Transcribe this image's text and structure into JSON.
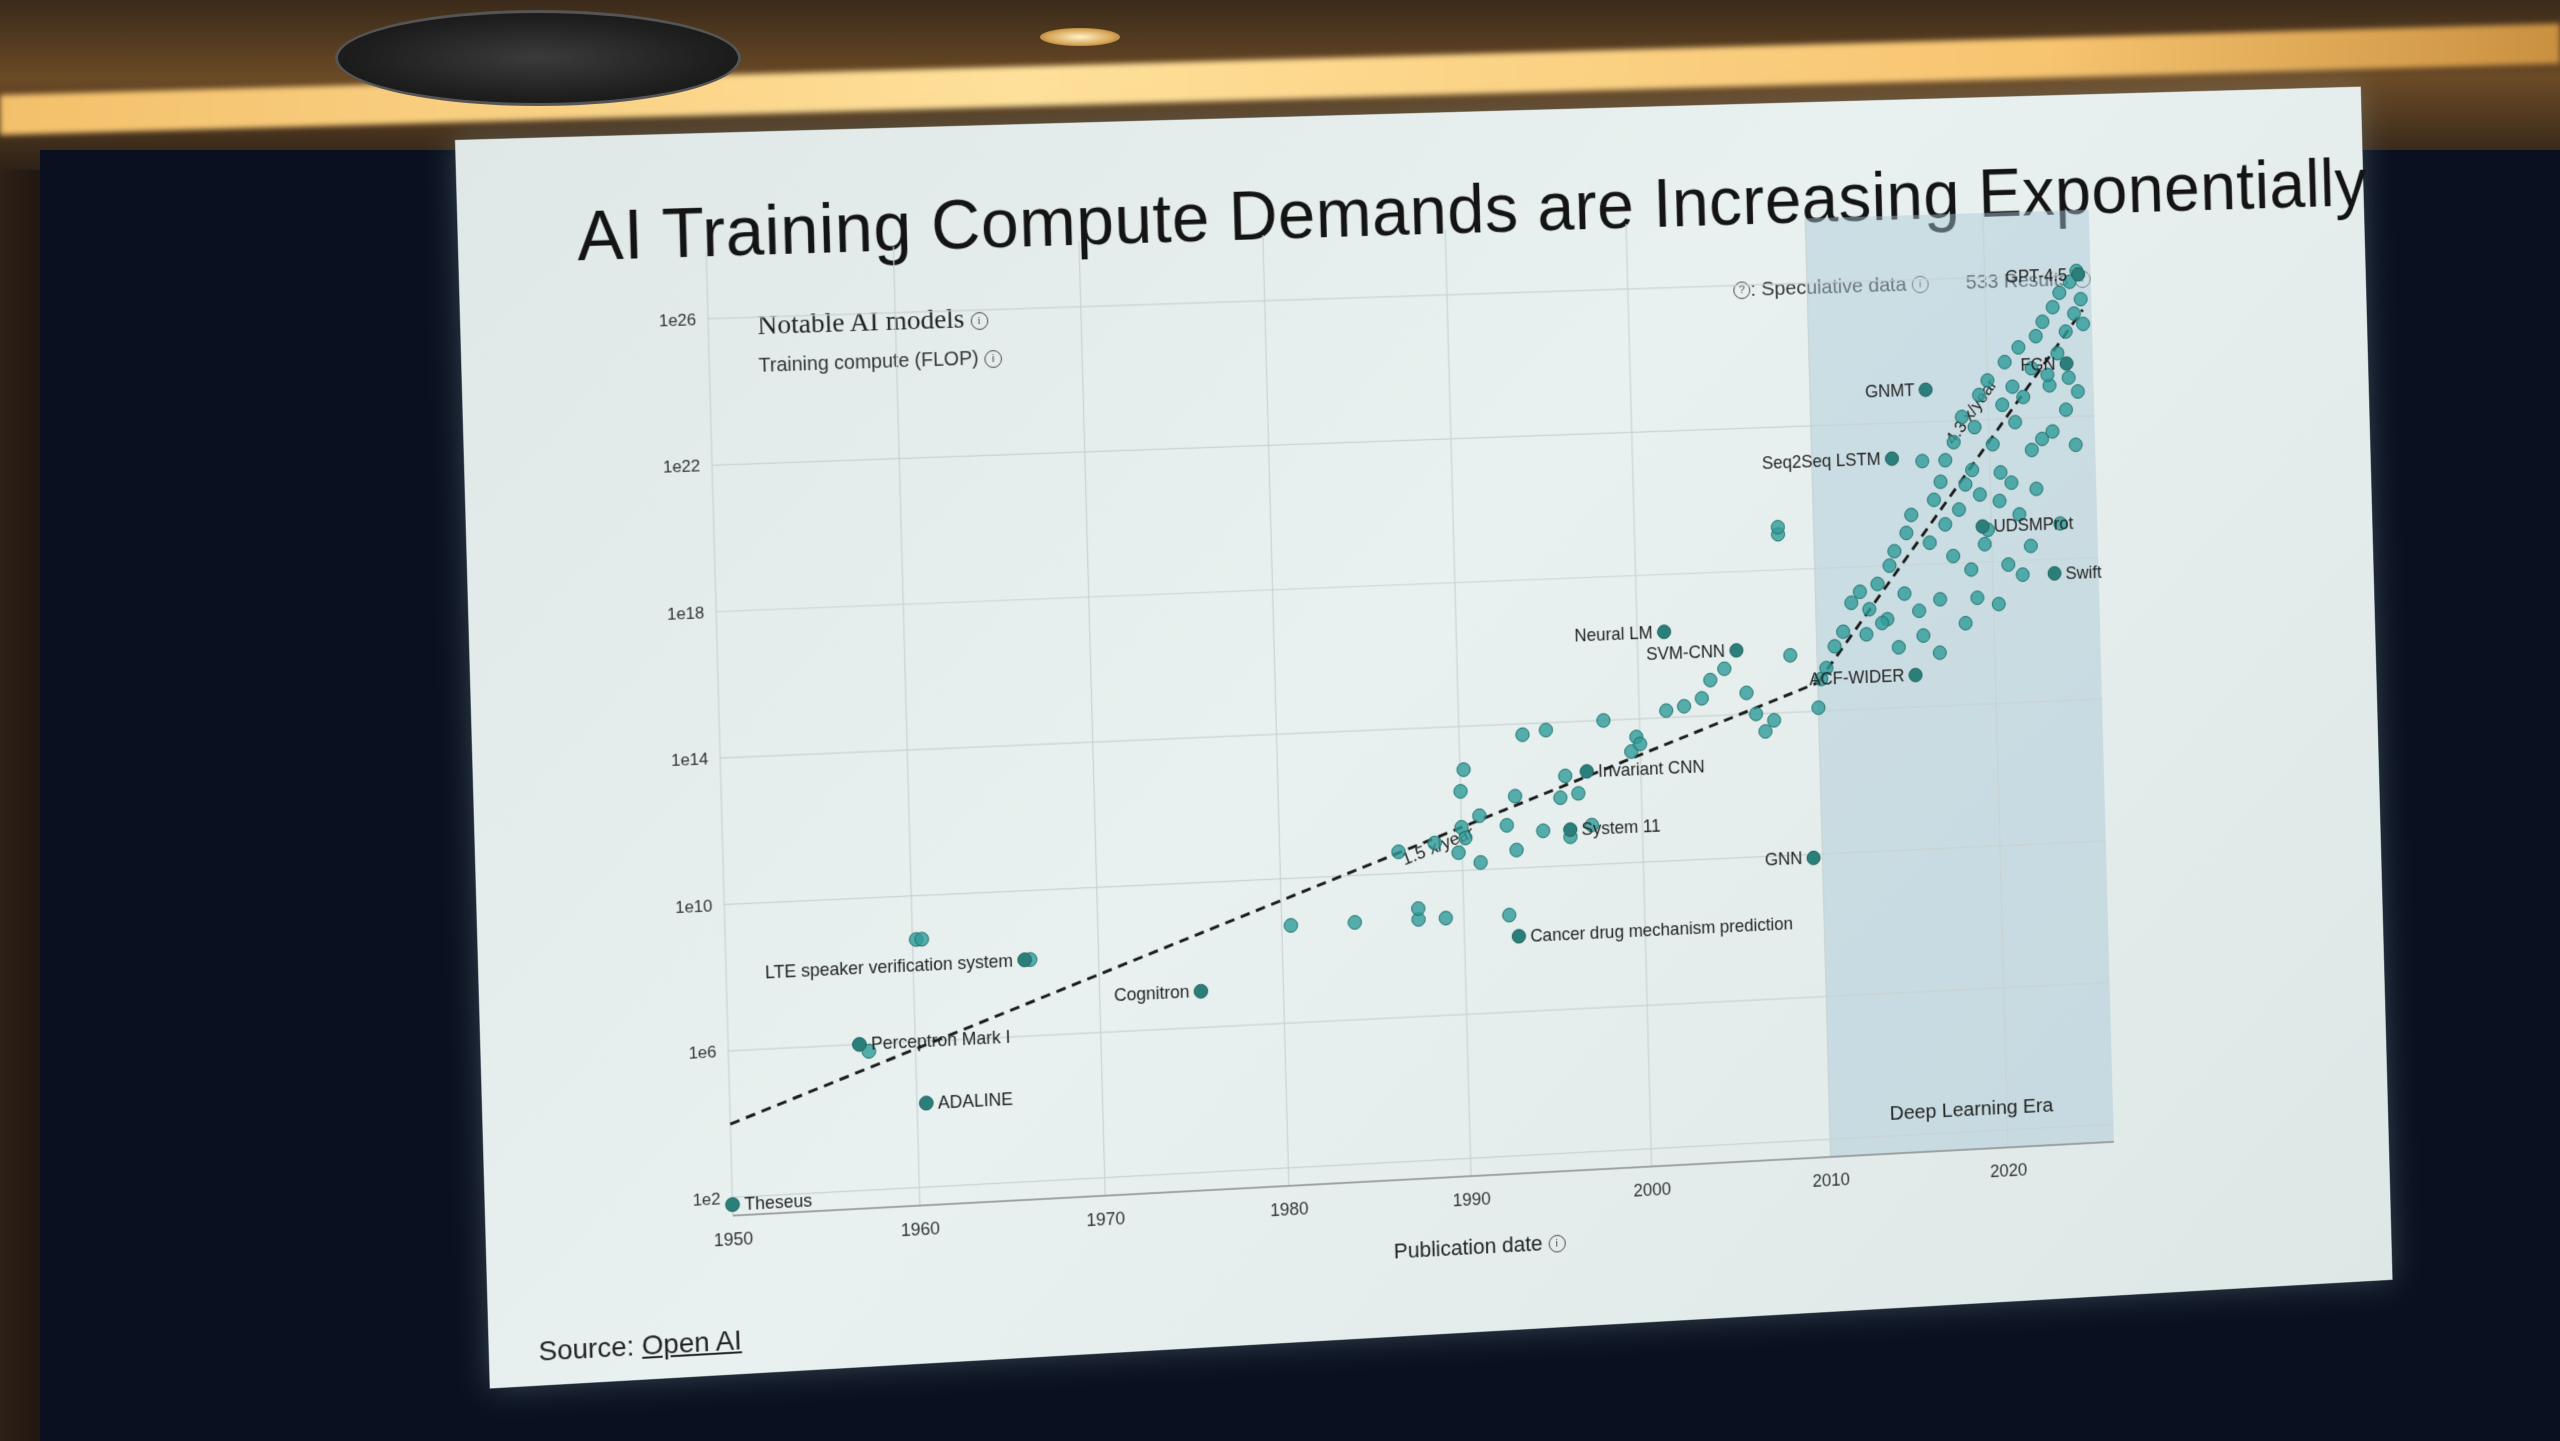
{
  "slide": {
    "title": "AI Training Compute Demands are Increasing Exponentially",
    "source_prefix": "Source:",
    "source_link": "Open AI"
  },
  "chart": {
    "title": "Notable AI models",
    "ylabel": "Training compute (FLOP)",
    "speculative_label": ": Speculative data",
    "results_label": "533 Results",
    "xlabel": "Publication date",
    "era_label": "Deep Learning Era",
    "trend1_label": "1.5 x/year",
    "trend2_label": "4.3 x/year"
  },
  "chart_data": {
    "type": "scatter",
    "x_ticks": [
      "1950",
      "1960",
      "1970",
      "1980",
      "1990",
      "2000",
      "2010",
      "2020"
    ],
    "y_ticks": [
      "1e2",
      "1e6",
      "1e10",
      "1e14",
      "1e18",
      "1e22",
      "1e26"
    ],
    "xlim": [
      1950,
      2026
    ],
    "ylim_log10": [
      1.5,
      27
    ],
    "shaded_region": {
      "from": 2010,
      "to": 2026,
      "label": "Deep Learning Era"
    },
    "trends": [
      {
        "label": "1.5 x/year",
        "from": [
          1950,
          4
        ],
        "to": [
          2010,
          14.8
        ]
      },
      {
        "label": "4.3 x/year",
        "from": [
          2010,
          14.8
        ],
        "to": [
          2025.5,
          25
        ]
      }
    ],
    "labeled_models": [
      {
        "name": "Theseus",
        "x": 1950,
        "log10": 1.8
      },
      {
        "name": "ADALINE",
        "x": 1960.5,
        "log10": 4.3
      },
      {
        "name": "Perceptron Mark I",
        "x": 1957,
        "log10": 6.0
      },
      {
        "name": "LTE speaker verification system",
        "x": 1966,
        "log10": 8.1
      },
      {
        "name": "Cognitron",
        "x": 1975.5,
        "log10": 7.0
      },
      {
        "name": "Cancer drug mechanism prediction",
        "x": 1993,
        "log10": 8.1
      },
      {
        "name": "System 11",
        "x": 1996,
        "log10": 11.0
      },
      {
        "name": "Invariant CNN",
        "x": 1997,
        "log10": 12.6
      },
      {
        "name": "GNN",
        "x": 2009.5,
        "log10": 9.9
      },
      {
        "name": "Neural LM",
        "x": 2001.5,
        "log10": 16.4
      },
      {
        "name": "SVM-CNN",
        "x": 2005.5,
        "log10": 15.8
      },
      {
        "name": "ACF-WIDER",
        "x": 2015.5,
        "log10": 14.9
      },
      {
        "name": "Seq2Seq LSTM",
        "x": 2014.5,
        "log10": 21.0
      },
      {
        "name": "UDSMProt",
        "x": 2019.5,
        "log10": 19.0
      },
      {
        "name": "GNMT",
        "x": 2016.5,
        "log10": 22.9
      },
      {
        "name": "FGN",
        "x": 2024.5,
        "log10": 23.5
      },
      {
        "name": "Swift",
        "x": 2023.5,
        "log10": 17.6
      },
      {
        "name": "GPT-4.5",
        "x": 2025.3,
        "log10": 26.0
      }
    ],
    "scatter_points": [
      [
        1960.2,
        8.8
      ],
      [
        1960.5,
        8.8
      ],
      [
        1957.5,
        5.8
      ],
      [
        1966.3,
        8.1
      ],
      [
        1980.5,
        8.7
      ],
      [
        1984,
        8.7
      ],
      [
        1987.5,
        8.7
      ],
      [
        1987.5,
        9.0
      ],
      [
        1989,
        8.7
      ],
      [
        1992.5,
        8.7
      ],
      [
        1986.5,
        10.6
      ],
      [
        1988.5,
        10.8
      ],
      [
        1989.8,
        10.5
      ],
      [
        1990,
        11.2
      ],
      [
        1990.2,
        10.9
      ],
      [
        1991,
        10.2
      ],
      [
        1991,
        11.5
      ],
      [
        1992.5,
        11.2
      ],
      [
        1993,
        10.5
      ],
      [
        1990,
        12.2
      ],
      [
        1990.2,
        12.8
      ],
      [
        1993,
        12.0
      ],
      [
        1994.5,
        11.0
      ],
      [
        1995.5,
        11.9
      ],
      [
        1995.8,
        12.5
      ],
      [
        1996,
        10.8
      ],
      [
        1996.5,
        12.0
      ],
      [
        1997.2,
        11.1
      ],
      [
        1993.5,
        13.7
      ],
      [
        1994.8,
        13.8
      ],
      [
        1998,
        14.0
      ],
      [
        1999.5,
        13.1
      ],
      [
        1999.8,
        13.5
      ],
      [
        2000,
        13.3
      ],
      [
        2001.5,
        14.2
      ],
      [
        2002.5,
        14.3
      ],
      [
        2003.5,
        14.5
      ],
      [
        2004,
        15.0
      ],
      [
        2004.8,
        15.3
      ],
      [
        2006,
        14.6
      ],
      [
        2006.5,
        14.0
      ],
      [
        2007,
        13.5
      ],
      [
        2007.5,
        13.8
      ],
      [
        2008.5,
        15.6
      ],
      [
        2008,
        19.0
      ],
      [
        2008,
        19.2
      ],
      [
        2010,
        14.1
      ],
      [
        2010.2,
        14.9
      ],
      [
        2010.5,
        15.2
      ],
      [
        2011,
        15.8
      ],
      [
        2011.5,
        16.2
      ],
      [
        2012,
        17.0
      ],
      [
        2012.5,
        17.3
      ],
      [
        2013,
        16.8
      ],
      [
        2013.5,
        17.5
      ],
      [
        2014,
        16.5
      ],
      [
        2014.2,
        18.0
      ],
      [
        2014.5,
        18.4
      ],
      [
        2015,
        17.2
      ],
      [
        2015.2,
        18.9
      ],
      [
        2015.5,
        19.4
      ],
      [
        2016,
        16.0
      ],
      [
        2016.5,
        18.6
      ],
      [
        2016.8,
        19.8
      ],
      [
        2017,
        17.0
      ],
      [
        2017.2,
        20.3
      ],
      [
        2017.5,
        20.9
      ],
      [
        2017.8,
        18.2
      ],
      [
        2018,
        21.4
      ],
      [
        2018.2,
        19.5
      ],
      [
        2018.5,
        22.1
      ],
      [
        2018.8,
        17.8
      ],
      [
        2019,
        20.6
      ],
      [
        2019.2,
        21.8
      ],
      [
        2019.5,
        22.7
      ],
      [
        2019.8,
        18.9
      ],
      [
        2020,
        23.1
      ],
      [
        2020.2,
        21.3
      ],
      [
        2020.5,
        19.7
      ],
      [
        2020.8,
        22.4
      ],
      [
        2021,
        23.6
      ],
      [
        2021.2,
        20.2
      ],
      [
        2021.5,
        21.9
      ],
      [
        2021.8,
        24.0
      ],
      [
        2022,
        22.6
      ],
      [
        2022.2,
        18.4
      ],
      [
        2022.5,
        23.4
      ],
      [
        2022.8,
        24.3
      ],
      [
        2023,
        21.4
      ],
      [
        2023.2,
        24.7
      ],
      [
        2023.5,
        22.9
      ],
      [
        2023.8,
        25.1
      ],
      [
        2024,
        23.8
      ],
      [
        2024.2,
        25.5
      ],
      [
        2024.5,
        24.4
      ],
      [
        2024.8,
        25.8
      ],
      [
        2025,
        24.9
      ],
      [
        2025.2,
        26.1
      ],
      [
        2025.4,
        25.3
      ],
      [
        2025.5,
        24.6
      ],
      [
        2016.2,
        20.9
      ],
      [
        2017.4,
        19.1
      ],
      [
        2018.6,
        20.2
      ],
      [
        2019.4,
        19.9
      ],
      [
        2020.6,
        20.5
      ],
      [
        2021.4,
        22.9
      ],
      [
        2022.4,
        21.1
      ],
      [
        2023.4,
        23.2
      ],
      [
        2024.4,
        22.2
      ],
      [
        2019.6,
        18.5
      ],
      [
        2020.9,
        17.9
      ],
      [
        2021.6,
        19.3
      ],
      [
        2022.6,
        20.0
      ],
      [
        2023.6,
        21.6
      ],
      [
        2024.6,
        23.1
      ],
      [
        2025.1,
        22.7
      ],
      [
        2024.9,
        21.2
      ],
      [
        2023.9,
        19.0
      ],
      [
        2012.8,
        16.1
      ],
      [
        2013.7,
        16.4
      ],
      [
        2014.6,
        15.7
      ],
      [
        2015.8,
        16.7
      ],
      [
        2016.9,
        15.5
      ],
      [
        2018.4,
        16.3
      ],
      [
        2019.1,
        17.0
      ],
      [
        2020.3,
        16.8
      ],
      [
        2021.7,
        17.6
      ]
    ]
  }
}
